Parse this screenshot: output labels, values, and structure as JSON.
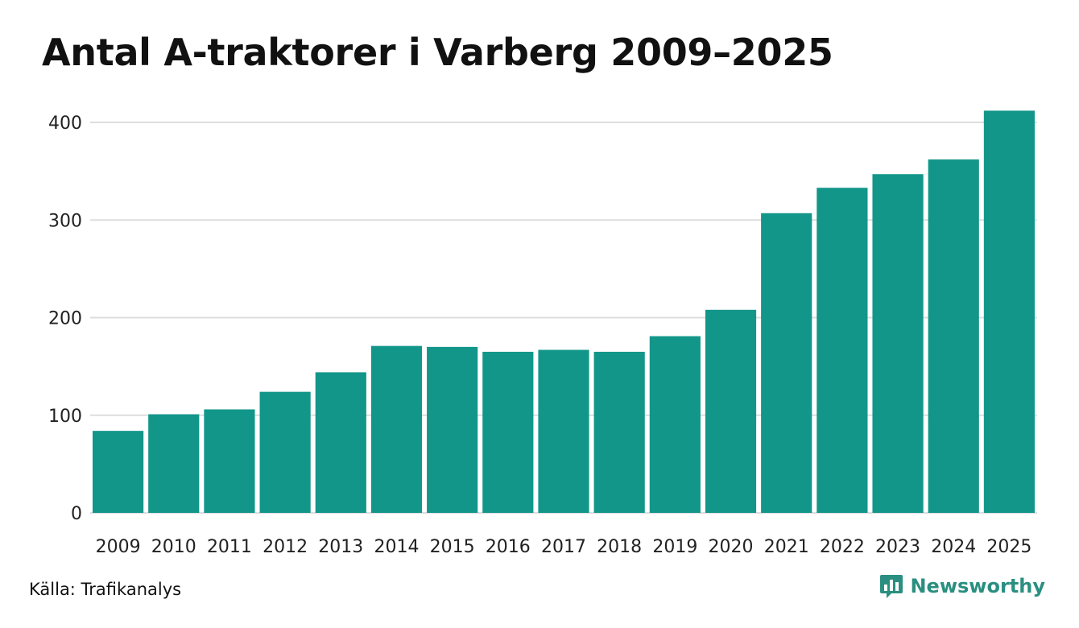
{
  "title": "Antal A-traktorer i Varberg 2009–2025",
  "source": "Källa: Trafikanalys",
  "brand": {
    "name": "Newsworthy",
    "logo_icon": "newsworthy-chat-bars-icon"
  },
  "colors": {
    "bar": "#13968a",
    "grid": "#dddddd",
    "brand": "#2a8f80"
  },
  "chart_data": {
    "type": "bar",
    "title": "Antal A-traktorer i Varberg 2009–2025",
    "xlabel": "",
    "ylabel": "",
    "categories": [
      "2009",
      "2010",
      "2011",
      "2012",
      "2013",
      "2014",
      "2015",
      "2016",
      "2017",
      "2018",
      "2019",
      "2020",
      "2021",
      "2022",
      "2023",
      "2024",
      "2025"
    ],
    "values": [
      84,
      101,
      106,
      124,
      144,
      171,
      170,
      165,
      167,
      165,
      181,
      208,
      307,
      333,
      347,
      362,
      412
    ],
    "yticks": [
      0,
      100,
      200,
      300,
      400
    ],
    "ylim": [
      0,
      420
    ],
    "grid": true,
    "legend": "none"
  }
}
